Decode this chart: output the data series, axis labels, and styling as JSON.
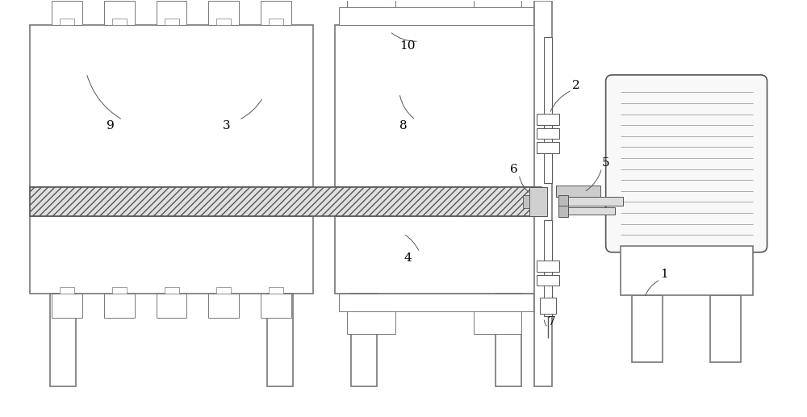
{
  "bg_color": "#ffffff",
  "ec": "#777777",
  "ec_dark": "#444444",
  "fig_width": 10.0,
  "fig_height": 5.17,
  "dpi": 100
}
